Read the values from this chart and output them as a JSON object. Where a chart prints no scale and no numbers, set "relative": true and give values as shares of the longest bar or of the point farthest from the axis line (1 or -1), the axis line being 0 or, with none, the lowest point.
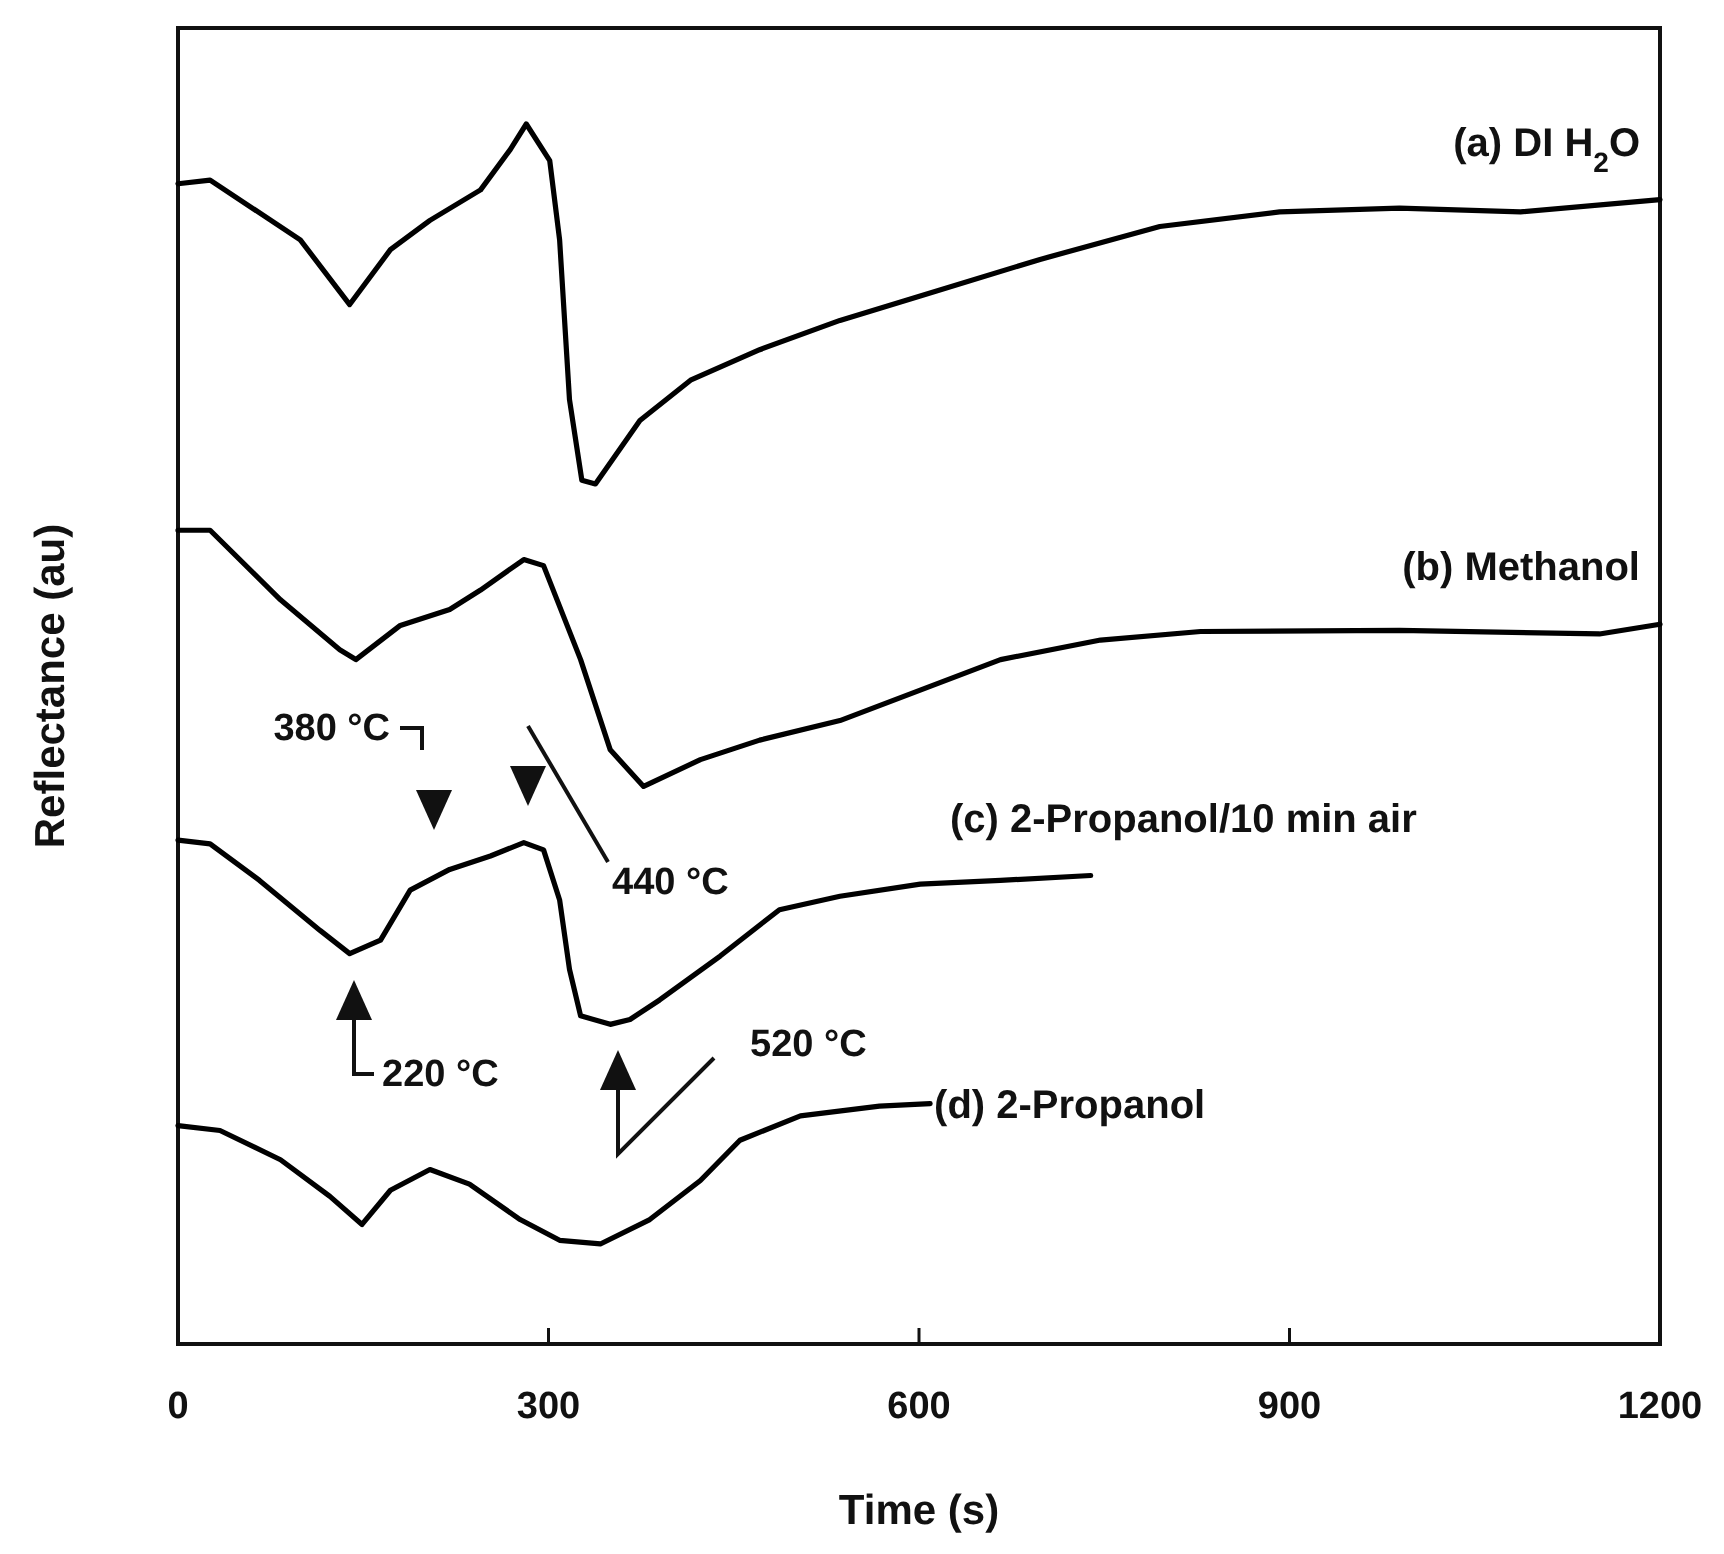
{
  "chart_data": {
    "type": "line",
    "relative": true,
    "xlabel": "Time (s)",
    "ylabel": "Reflectance (au)",
    "xlim": [
      0,
      1200
    ],
    "xticks": [
      0,
      300,
      600,
      900,
      1200
    ],
    "grid": false,
    "line_style": "solid",
    "series": [
      {
        "name": "(a) DI H$_{2}$O",
        "color": "#000000",
        "x": [
          0,
          26,
          99,
          139,
          172,
          204,
          245,
          269,
          282,
          301,
          309,
          317,
          327,
          338,
          374,
          415,
          471,
          536,
          601,
          698,
          795,
          892,
          989,
          1087,
          1200
        ],
        "values": [
          0.951,
          0.954,
          0.905,
          0.852,
          0.897,
          0.921,
          0.946,
          0.979,
          1.0,
          0.97,
          0.905,
          0.774,
          0.708,
          0.705,
          0.757,
          0.79,
          0.815,
          0.839,
          0.859,
          0.889,
          0.916,
          0.928,
          0.931,
          0.928,
          0.938
        ]
      },
      {
        "name": "(b) Methanol",
        "color": "#000000",
        "x": [
          0,
          26,
          83,
          131,
          144,
          180,
          220,
          245,
          280,
          296,
          326,
          350,
          377,
          423,
          471,
          536,
          601,
          666,
          747,
          828,
          989,
          1151,
          1200
        ],
        "values": [
          0.667,
          0.667,
          0.61,
          0.569,
          0.561,
          0.589,
          0.602,
          0.618,
          0.643,
          0.638,
          0.561,
          0.487,
          0.457,
          0.479,
          0.495,
          0.511,
          0.536,
          0.561,
          0.577,
          0.584,
          0.585,
          0.582,
          0.59
        ]
      },
      {
        "name": "(c) 2-Propanol/10 min air",
        "color": "#000000",
        "x": [
          0,
          26,
          66,
          115,
          139,
          164,
          188,
          220,
          253,
          280,
          296,
          309,
          317,
          326,
          350,
          366,
          390,
          439,
          487,
          536,
          601,
          666,
          739
        ],
        "values": [
          0.413,
          0.41,
          0.38,
          0.339,
          0.32,
          0.331,
          0.372,
          0.389,
          0.4,
          0.411,
          0.405,
          0.364,
          0.307,
          0.269,
          0.262,
          0.266,
          0.282,
          0.318,
          0.356,
          0.367,
          0.377,
          0.38,
          0.384
        ]
      },
      {
        "name": "(d) 2-Propanol",
        "color": "#000000",
        "x": [
          0,
          34,
          83,
          123,
          149,
          172,
          204,
          236,
          277,
          309,
          342,
          382,
          423,
          455,
          504,
          568,
          609
        ],
        "values": [
          0.179,
          0.175,
          0.151,
          0.121,
          0.098,
          0.126,
          0.143,
          0.131,
          0.102,
          0.085,
          0.082,
          0.102,
          0.134,
          0.167,
          0.187,
          0.195,
          0.197
        ]
      }
    ],
    "annotations": [
      "380 °C",
      "440 °C",
      "220 °C",
      "520 °C"
    ]
  }
}
